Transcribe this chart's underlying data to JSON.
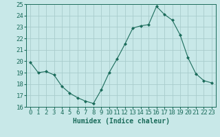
{
  "x": [
    0,
    1,
    2,
    3,
    4,
    5,
    6,
    7,
    8,
    9,
    10,
    11,
    12,
    13,
    14,
    15,
    16,
    17,
    18,
    19,
    20,
    21,
    22,
    23
  ],
  "y": [
    19.9,
    19.0,
    19.1,
    18.8,
    17.8,
    17.2,
    16.8,
    16.5,
    16.3,
    17.5,
    19.0,
    20.2,
    21.5,
    22.9,
    23.1,
    23.2,
    24.8,
    24.1,
    23.6,
    22.3,
    20.3,
    18.9,
    18.3,
    18.1
  ],
  "line_color": "#1a6b5a",
  "marker": "D",
  "marker_size": 2,
  "bg_color": "#c8e8e8",
  "grid_color": "#a8cccc",
  "xlabel": "Humidex (Indice chaleur)",
  "ylim": [
    16,
    25
  ],
  "xlim": [
    -0.5,
    23.5
  ],
  "yticks": [
    16,
    17,
    18,
    19,
    20,
    21,
    22,
    23,
    24,
    25
  ],
  "xticks": [
    0,
    1,
    2,
    3,
    4,
    5,
    6,
    7,
    8,
    9,
    10,
    11,
    12,
    13,
    14,
    15,
    16,
    17,
    18,
    19,
    20,
    21,
    22,
    23
  ],
  "tick_color": "#1a6b5a",
  "label_fontsize": 7,
  "tick_fontsize": 6.5
}
